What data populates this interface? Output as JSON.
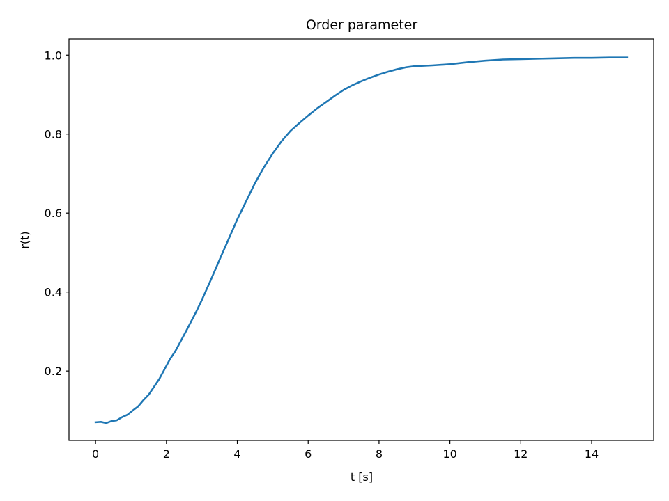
{
  "chart_data": {
    "type": "line",
    "title": "Order parameter",
    "xlabel": "t [s]",
    "ylabel": "r(t)",
    "xlim": [
      -0.75,
      15.75
    ],
    "ylim": [
      0.024,
      1.041
    ],
    "x_ticks": [
      0,
      2,
      4,
      6,
      8,
      10,
      12,
      14
    ],
    "x_tick_labels": [
      "0",
      "2",
      "4",
      "6",
      "8",
      "10",
      "12",
      "14"
    ],
    "y_ticks": [
      0.2,
      0.4,
      0.6,
      0.8,
      1.0
    ],
    "y_tick_labels": [
      "0.2",
      "0.4",
      "0.6",
      "0.8",
      "1.0"
    ],
    "grid": false,
    "series": [
      {
        "color": "#1f77b4",
        "x": [
          0,
          0.15,
          0.3,
          0.45,
          0.6,
          0.75,
          0.9,
          1.05,
          1.2,
          1.35,
          1.5,
          1.65,
          1.8,
          1.95,
          2.1,
          2.25,
          2.4,
          2.55,
          2.7,
          2.85,
          3.0,
          3.25,
          3.5,
          3.75,
          4.0,
          4.25,
          4.5,
          4.75,
          5.0,
          5.25,
          5.5,
          5.75,
          6.0,
          6.25,
          6.5,
          6.75,
          7.0,
          7.25,
          7.5,
          7.75,
          8.0,
          8.25,
          8.5,
          8.75,
          9.0,
          9.5,
          10.0,
          10.5,
          11.0,
          11.5,
          12.0,
          12.5,
          13.0,
          13.5,
          14.0,
          14.5,
          15.0
        ],
        "y": [
          0.07,
          0.071,
          0.068,
          0.073,
          0.075,
          0.083,
          0.089,
          0.1,
          0.11,
          0.126,
          0.14,
          0.16,
          0.18,
          0.205,
          0.23,
          0.25,
          0.275,
          0.3,
          0.326,
          0.352,
          0.38,
          0.43,
          0.482,
          0.533,
          0.584,
          0.63,
          0.676,
          0.716,
          0.751,
          0.782,
          0.808,
          0.828,
          0.847,
          0.865,
          0.881,
          0.897,
          0.912,
          0.924,
          0.934,
          0.943,
          0.951,
          0.958,
          0.964,
          0.969,
          0.972,
          0.974,
          0.977,
          0.982,
          0.986,
          0.989,
          0.99,
          0.991,
          0.992,
          0.993,
          0.993,
          0.994,
          0.994
        ]
      }
    ]
  }
}
